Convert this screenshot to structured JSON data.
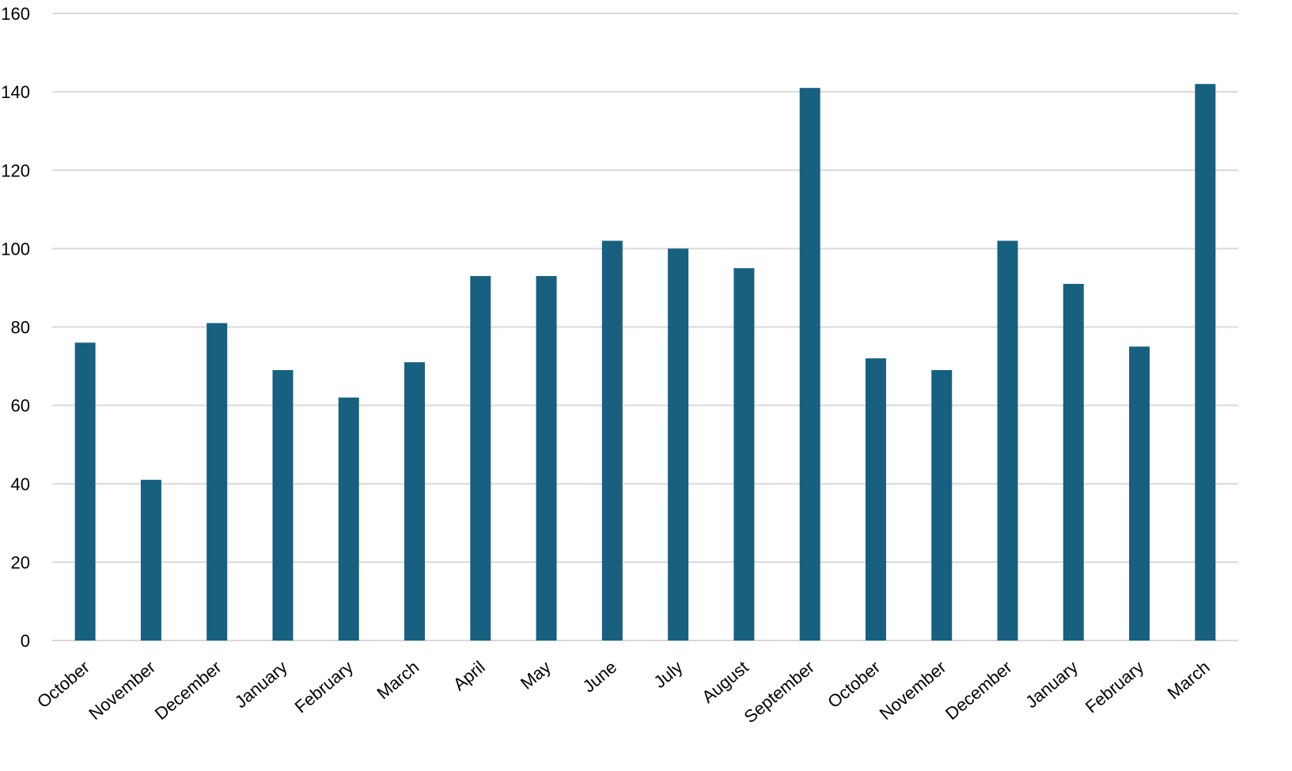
{
  "chart_data": {
    "type": "bar",
    "categories": [
      "October",
      "November",
      "December",
      "January",
      "February",
      "March",
      "April",
      "May",
      "June",
      "July",
      "August",
      "September",
      "October",
      "November",
      "December",
      "January",
      "February",
      "March"
    ],
    "values": [
      76,
      41,
      81,
      69,
      62,
      71,
      93,
      93,
      102,
      100,
      95,
      141,
      72,
      69,
      102,
      91,
      75,
      142
    ],
    "title": "",
    "xlabel": "",
    "ylabel": "",
    "ylim": [
      0,
      160
    ],
    "yticks": [
      0,
      20,
      40,
      60,
      80,
      100,
      120,
      140,
      160
    ],
    "grid": "horizontal",
    "legend": "none",
    "bar_color": "#17607f",
    "grid_color": "#d9d9d9"
  }
}
